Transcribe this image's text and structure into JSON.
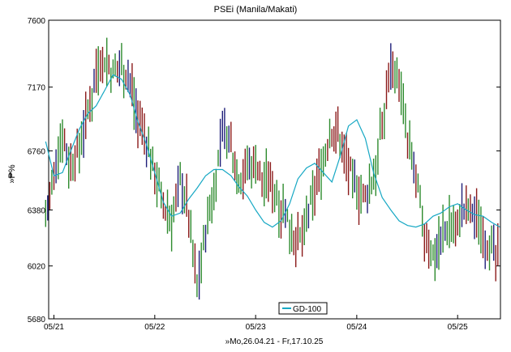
{
  "chart_data": {
    "type": "line",
    "title": "PSEi (Manila/Makati)",
    "ylabel": "»₱%",
    "xlabel": "»Mo,26.04.21 - Fr,17.10.25",
    "ylim": [
      5680,
      7600
    ],
    "yticks": [
      5680,
      6020,
      6380,
      6760,
      7170,
      7600
    ],
    "xticks": [
      {
        "label": "05/21",
        "x": "2021-05"
      },
      {
        "label": "05/22",
        "x": "2022-05"
      },
      {
        "label": "05/23",
        "x": "2023-05"
      },
      {
        "label": "05/24",
        "x": "2024-05"
      },
      {
        "label": "05/25",
        "x": "2025-05"
      }
    ],
    "legend": {
      "placement": "bottom-center",
      "entries": [
        "GD-100"
      ]
    },
    "grid": false,
    "colors": {
      "up": "#2e8b2e",
      "down": "#8b1a1a",
      "neutral": "#1f1f7a",
      "ma": "#17a8c4",
      "axis": "#000000"
    },
    "series": [
      {
        "name": "PSEi",
        "style": "bars",
        "x": [
          "2021-04",
          "2021-05",
          "2021-06",
          "2021-07",
          "2021-08",
          "2021-09",
          "2021-10",
          "2021-11",
          "2021-12",
          "2022-01",
          "2022-02",
          "2022-03",
          "2022-04",
          "2022-05",
          "2022-06",
          "2022-07",
          "2022-08",
          "2022-09",
          "2022-10",
          "2022-11",
          "2022-12",
          "2023-01",
          "2023-02",
          "2023-03",
          "2023-04",
          "2023-05",
          "2023-06",
          "2023-07",
          "2023-08",
          "2023-09",
          "2023-10",
          "2023-11",
          "2023-12",
          "2024-01",
          "2024-02",
          "2024-03",
          "2024-04",
          "2024-05",
          "2024-06",
          "2024-07",
          "2024-08",
          "2024-09",
          "2024-10",
          "2024-11",
          "2024-12",
          "2025-01",
          "2025-02",
          "2025-03",
          "2025-04",
          "2025-05",
          "2025-06",
          "2025-07",
          "2025-08",
          "2025-09",
          "2025-10"
        ],
        "values": [
          6390,
          6550,
          6900,
          6650,
          6780,
          7000,
          7300,
          7350,
          7250,
          7350,
          7200,
          6950,
          6800,
          6650,
          6400,
          6300,
          6600,
          6350,
          5900,
          6250,
          6500,
          6900,
          6800,
          6600,
          6650,
          6700,
          6550,
          6550,
          6400,
          6300,
          6150,
          6300,
          6500,
          6700,
          6900,
          6850,
          6650,
          6500,
          6450,
          6600,
          6900,
          7350,
          7200,
          6800,
          6600,
          6200,
          6100,
          6200,
          6300,
          6300,
          6400,
          6350,
          6250,
          6100,
          6050
        ]
      },
      {
        "name": "GD-100",
        "style": "line",
        "x": [
          "2021-04",
          "2021-05",
          "2021-06",
          "2021-07",
          "2021-08",
          "2021-09",
          "2021-10",
          "2021-11",
          "2021-12",
          "2022-01",
          "2022-02",
          "2022-03",
          "2022-04",
          "2022-05",
          "2022-06",
          "2022-07",
          "2022-08",
          "2022-09",
          "2022-10",
          "2022-11",
          "2022-12",
          "2023-01",
          "2023-02",
          "2023-03",
          "2023-04",
          "2023-05",
          "2023-06",
          "2023-07",
          "2023-08",
          "2023-09",
          "2023-10",
          "2023-11",
          "2023-12",
          "2024-01",
          "2024-02",
          "2024-03",
          "2024-04",
          "2024-05",
          "2024-06",
          "2024-07",
          "2024-08",
          "2024-09",
          "2024-10",
          "2024-11",
          "2024-12",
          "2025-01",
          "2025-02",
          "2025-03",
          "2025-04",
          "2025-05",
          "2025-06",
          "2025-07",
          "2025-08",
          "2025-09",
          "2025-10"
        ],
        "values": [
          6820,
          6600,
          6620,
          6760,
          6900,
          7000,
          7050,
          7150,
          7250,
          7220,
          7120,
          6950,
          6800,
          6620,
          6430,
          6340,
          6360,
          6450,
          6520,
          6600,
          6640,
          6640,
          6600,
          6530,
          6470,
          6380,
          6300,
          6270,
          6310,
          6420,
          6580,
          6650,
          6680,
          6620,
          6560,
          6720,
          6920,
          6960,
          6840,
          6620,
          6460,
          6380,
          6310,
          6280,
          6270,
          6290,
          6340,
          6360,
          6400,
          6420,
          6380,
          6350,
          6340,
          6300,
          6270
        ]
      }
    ]
  }
}
